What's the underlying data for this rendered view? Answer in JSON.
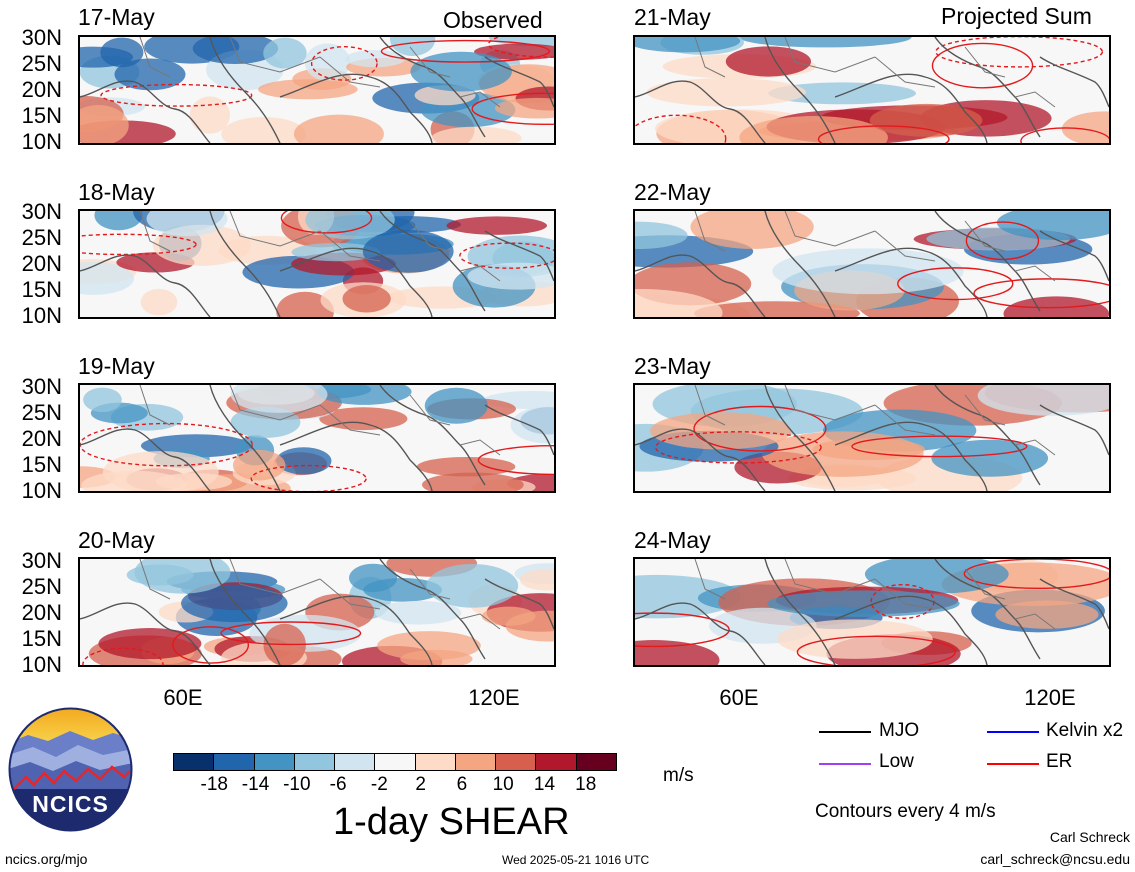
{
  "header": {
    "observed_label": "Observed",
    "projected_label": "Projected Sum"
  },
  "panels": [
    {
      "date": "17-May",
      "column": "observed"
    },
    {
      "date": "18-May",
      "column": "observed"
    },
    {
      "date": "19-May",
      "column": "observed"
    },
    {
      "date": "20-May",
      "column": "observed"
    },
    {
      "date": "21-May",
      "column": "projected"
    },
    {
      "date": "22-May",
      "column": "projected"
    },
    {
      "date": "23-May",
      "column": "projected"
    },
    {
      "date": "24-May",
      "column": "projected"
    }
  ],
  "lat_ticks": [
    "30N",
    "25N",
    "20N",
    "15N",
    "10N"
  ],
  "lon_ticks": [
    "60E",
    "120E"
  ],
  "colorbar": {
    "title": "1-day SHEAR",
    "units": "m/s",
    "tick_labels": [
      "-18",
      "-14",
      "-10",
      "-6",
      "-2",
      "2",
      "6",
      "10",
      "14",
      "18"
    ],
    "colors": [
      "#08306b",
      "#2166ac",
      "#4393c3",
      "#92c5de",
      "#d1e5f0",
      "#f7f7f7",
      "#fddbc7",
      "#f4a582",
      "#d6604d",
      "#b2182b",
      "#67001f"
    ]
  },
  "legend": {
    "items": [
      {
        "label": "MJO",
        "color": "#000000"
      },
      {
        "label": "Kelvin x2",
        "color": "#0000ff"
      },
      {
        "label": "Low",
        "color": "#a040f0"
      },
      {
        "label": "ER",
        "color": "#ff0000"
      }
    ],
    "note": "Contours every 4 m/s"
  },
  "logo": {
    "text": "NCICS"
  },
  "footer": {
    "url": "ncics.org/mjo",
    "timestamp": "Wed 2025-05-21 1016 UTC",
    "author": "Carl Schreck",
    "email": "carl_schreck@ncsu.edu"
  }
}
